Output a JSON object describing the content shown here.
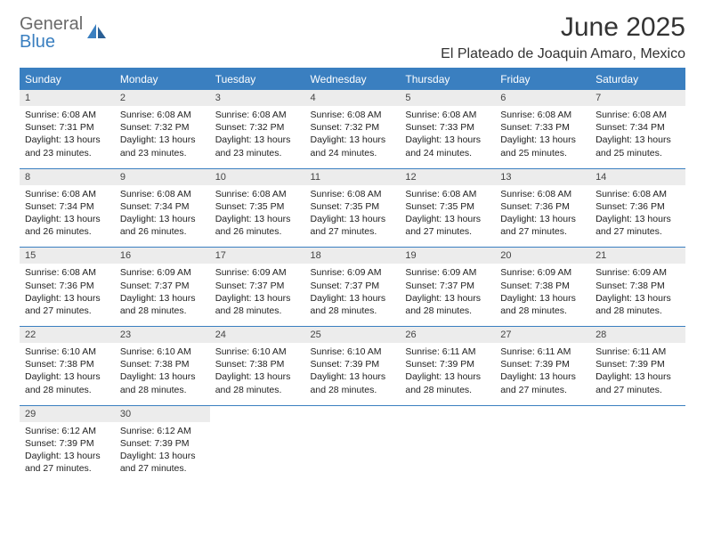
{
  "logo": {
    "text1": "General",
    "text2": "Blue"
  },
  "title": "June 2025",
  "subtitle": "El Plateado de Joaquin Amaro, Mexico",
  "colors": {
    "header_bg": "#3a7fc0",
    "header_text": "#ffffff",
    "daynum_bg": "#ececec",
    "border": "#3a7fc0",
    "title_color": "#333333",
    "logo_gray": "#6a6a6a",
    "logo_blue": "#3a7fc0"
  },
  "weekdays": [
    "Sunday",
    "Monday",
    "Tuesday",
    "Wednesday",
    "Thursday",
    "Friday",
    "Saturday"
  ],
  "days": [
    {
      "n": "1",
      "sr": "6:08 AM",
      "ss": "7:31 PM",
      "dl": "13 hours and 23 minutes."
    },
    {
      "n": "2",
      "sr": "6:08 AM",
      "ss": "7:32 PM",
      "dl": "13 hours and 23 minutes."
    },
    {
      "n": "3",
      "sr": "6:08 AM",
      "ss": "7:32 PM",
      "dl": "13 hours and 23 minutes."
    },
    {
      "n": "4",
      "sr": "6:08 AM",
      "ss": "7:32 PM",
      "dl": "13 hours and 24 minutes."
    },
    {
      "n": "5",
      "sr": "6:08 AM",
      "ss": "7:33 PM",
      "dl": "13 hours and 24 minutes."
    },
    {
      "n": "6",
      "sr": "6:08 AM",
      "ss": "7:33 PM",
      "dl": "13 hours and 25 minutes."
    },
    {
      "n": "7",
      "sr": "6:08 AM",
      "ss": "7:34 PM",
      "dl": "13 hours and 25 minutes."
    },
    {
      "n": "8",
      "sr": "6:08 AM",
      "ss": "7:34 PM",
      "dl": "13 hours and 26 minutes."
    },
    {
      "n": "9",
      "sr": "6:08 AM",
      "ss": "7:34 PM",
      "dl": "13 hours and 26 minutes."
    },
    {
      "n": "10",
      "sr": "6:08 AM",
      "ss": "7:35 PM",
      "dl": "13 hours and 26 minutes."
    },
    {
      "n": "11",
      "sr": "6:08 AM",
      "ss": "7:35 PM",
      "dl": "13 hours and 27 minutes."
    },
    {
      "n": "12",
      "sr": "6:08 AM",
      "ss": "7:35 PM",
      "dl": "13 hours and 27 minutes."
    },
    {
      "n": "13",
      "sr": "6:08 AM",
      "ss": "7:36 PM",
      "dl": "13 hours and 27 minutes."
    },
    {
      "n": "14",
      "sr": "6:08 AM",
      "ss": "7:36 PM",
      "dl": "13 hours and 27 minutes."
    },
    {
      "n": "15",
      "sr": "6:08 AM",
      "ss": "7:36 PM",
      "dl": "13 hours and 27 minutes."
    },
    {
      "n": "16",
      "sr": "6:09 AM",
      "ss": "7:37 PM",
      "dl": "13 hours and 28 minutes."
    },
    {
      "n": "17",
      "sr": "6:09 AM",
      "ss": "7:37 PM",
      "dl": "13 hours and 28 minutes."
    },
    {
      "n": "18",
      "sr": "6:09 AM",
      "ss": "7:37 PM",
      "dl": "13 hours and 28 minutes."
    },
    {
      "n": "19",
      "sr": "6:09 AM",
      "ss": "7:37 PM",
      "dl": "13 hours and 28 minutes."
    },
    {
      "n": "20",
      "sr": "6:09 AM",
      "ss": "7:38 PM",
      "dl": "13 hours and 28 minutes."
    },
    {
      "n": "21",
      "sr": "6:09 AM",
      "ss": "7:38 PM",
      "dl": "13 hours and 28 minutes."
    },
    {
      "n": "22",
      "sr": "6:10 AM",
      "ss": "7:38 PM",
      "dl": "13 hours and 28 minutes."
    },
    {
      "n": "23",
      "sr": "6:10 AM",
      "ss": "7:38 PM",
      "dl": "13 hours and 28 minutes."
    },
    {
      "n": "24",
      "sr": "6:10 AM",
      "ss": "7:38 PM",
      "dl": "13 hours and 28 minutes."
    },
    {
      "n": "25",
      "sr": "6:10 AM",
      "ss": "7:39 PM",
      "dl": "13 hours and 28 minutes."
    },
    {
      "n": "26",
      "sr": "6:11 AM",
      "ss": "7:39 PM",
      "dl": "13 hours and 28 minutes."
    },
    {
      "n": "27",
      "sr": "6:11 AM",
      "ss": "7:39 PM",
      "dl": "13 hours and 27 minutes."
    },
    {
      "n": "28",
      "sr": "6:11 AM",
      "ss": "7:39 PM",
      "dl": "13 hours and 27 minutes."
    },
    {
      "n": "29",
      "sr": "6:12 AM",
      "ss": "7:39 PM",
      "dl": "13 hours and 27 minutes."
    },
    {
      "n": "30",
      "sr": "6:12 AM",
      "ss": "7:39 PM",
      "dl": "13 hours and 27 minutes."
    }
  ],
  "labels": {
    "sunrise": "Sunrise:",
    "sunset": "Sunset:",
    "daylight": "Daylight:"
  }
}
